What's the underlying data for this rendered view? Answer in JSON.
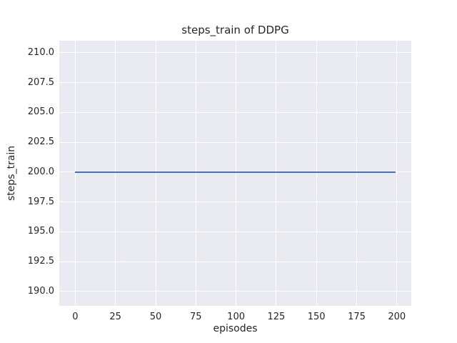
{
  "chart_data": {
    "type": "line",
    "title": "steps_train of DDPG",
    "xlabel": "episodes",
    "ylabel": "steps_train",
    "x_ticks": [
      0,
      25,
      50,
      75,
      100,
      125,
      150,
      175,
      200
    ],
    "x_tick_labels": [
      "0",
      "25",
      "50",
      "75",
      "100",
      "125",
      "150",
      "175",
      "200"
    ],
    "y_ticks": [
      190.0,
      192.5,
      195.0,
      197.5,
      200.0,
      202.5,
      205.0,
      207.5,
      210.0
    ],
    "y_tick_labels": [
      "190.0",
      "192.5",
      "195.0",
      "197.5",
      "200.0",
      "202.5",
      "205.0",
      "207.5",
      "210.0"
    ],
    "xlim": [
      -9.95,
      208.95
    ],
    "ylim": [
      188.8,
      211.0
    ],
    "grid": true,
    "legend": "none",
    "series": [
      {
        "name": "steps_train",
        "color": "#4C72B0",
        "x": [
          0,
          199
        ],
        "y": [
          200,
          200
        ],
        "description": "constant value 200 for every episode from 0 to 199"
      }
    ],
    "style": {
      "figure_background": "#FFFFFF",
      "axes_background": "#EAEAF2",
      "grid_color": "#FFFFFF",
      "text_color": "#262626"
    }
  }
}
